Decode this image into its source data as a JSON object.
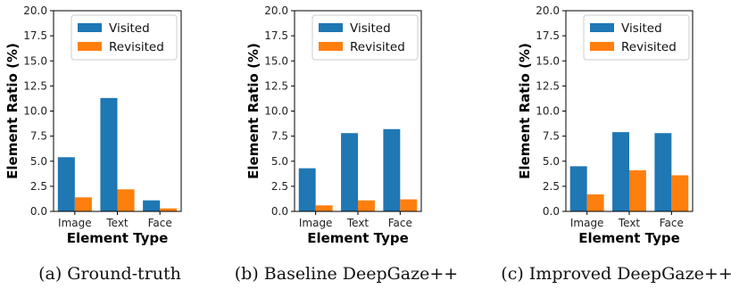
{
  "colors": {
    "visited": "#1f77b4",
    "revisited": "#ff7f0e"
  },
  "chart_data": [
    {
      "type": "bar",
      "caption": "(a) Ground-truth",
      "categories": [
        "Image",
        "Text",
        "Face"
      ],
      "series": [
        {
          "name": "Visited",
          "values": [
            5.4,
            11.3,
            1.1
          ]
        },
        {
          "name": "Revisited",
          "values": [
            1.4,
            2.2,
            0.3
          ]
        }
      ],
      "xlabel": "Element Type",
      "ylabel": "Element Ratio (%)",
      "ylim": [
        0,
        20
      ],
      "yticks": [
        "0.0",
        "2.5",
        "5.0",
        "7.5",
        "10.0",
        "12.5",
        "15.0",
        "17.5",
        "20.0"
      ],
      "legend": "top-center",
      "grid": false
    },
    {
      "type": "bar",
      "caption": "(b) Baseline DeepGaze++",
      "categories": [
        "Image",
        "Text",
        "Face"
      ],
      "series": [
        {
          "name": "Visited",
          "values": [
            4.3,
            7.8,
            8.2
          ]
        },
        {
          "name": "Revisited",
          "values": [
            0.6,
            1.1,
            1.2
          ]
        }
      ],
      "xlabel": "Element Type",
      "ylabel": "Element Ratio (%)",
      "ylim": [
        0,
        20
      ],
      "yticks": [
        "0.0",
        "2.5",
        "5.0",
        "7.5",
        "10.0",
        "12.5",
        "15.0",
        "17.5",
        "20.0"
      ],
      "legend": "top-center",
      "grid": false
    },
    {
      "type": "bar",
      "caption": "(c) Improved DeepGaze++",
      "categories": [
        "Image",
        "Text",
        "Face"
      ],
      "series": [
        {
          "name": "Visited",
          "values": [
            4.5,
            7.9,
            7.8
          ]
        },
        {
          "name": "Revisited",
          "values": [
            1.7,
            4.1,
            3.6
          ]
        }
      ],
      "xlabel": "Element Type",
      "ylabel": "Element Ratio (%)",
      "ylim": [
        0,
        20
      ],
      "yticks": [
        "0.0",
        "2.5",
        "5.0",
        "7.5",
        "10.0",
        "12.5",
        "15.0",
        "17.5",
        "20.0"
      ],
      "legend": "top-center",
      "grid": false
    }
  ]
}
